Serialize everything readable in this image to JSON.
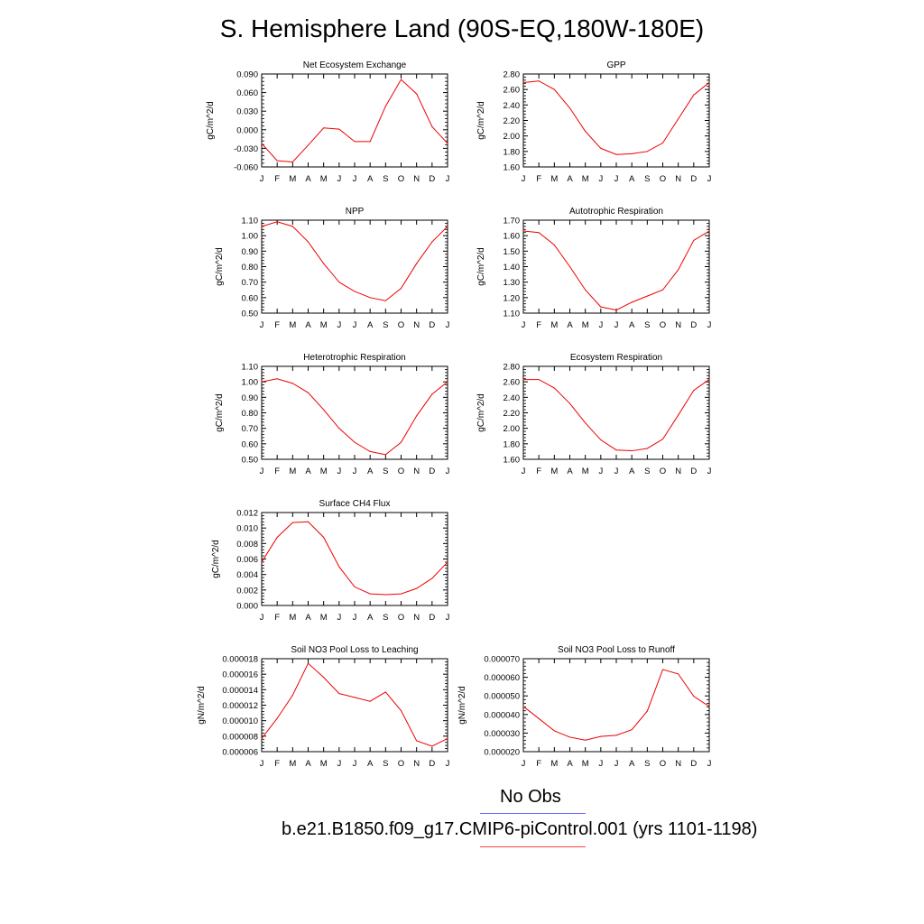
{
  "page": {
    "title": "S. Hemisphere Land (90S-EQ,180W-180E)"
  },
  "legend": {
    "obs_label": "No Obs",
    "model_label": "b.e21.B1850.f09_g17.CMIP6-piControl.001 (yrs 1101-1198)",
    "obs_color": "#6b6bff",
    "model_color": "#ff4444"
  },
  "colors": {
    "series": "#ee0000",
    "axis": "#000000"
  },
  "chart_data": [
    {
      "type": "line",
      "title": "Net Ecosystem Exchange",
      "ylabel": "gC/m^2/d",
      "x_ticks": [
        "J",
        "F",
        "M",
        "A",
        "M",
        "J",
        "J",
        "A",
        "S",
        "O",
        "N",
        "D",
        "J"
      ],
      "ylim": [
        -0.06,
        0.09
      ],
      "y_ticks": [
        "-0.060",
        "-0.030",
        "0.000",
        "0.030",
        "0.060",
        "0.090"
      ],
      "series": [
        {
          "name": "model",
          "values": [
            -0.022,
            -0.05,
            -0.052,
            -0.025,
            0.003,
            0.001,
            -0.019,
            -0.019,
            0.038,
            0.081,
            0.058,
            0.005,
            -0.022
          ]
        }
      ]
    },
    {
      "type": "line",
      "title": "GPP",
      "ylabel": "gC/m^2/d",
      "x_ticks": [
        "J",
        "F",
        "M",
        "A",
        "M",
        "J",
        "J",
        "A",
        "S",
        "O",
        "N",
        "D",
        "J"
      ],
      "ylim": [
        1.6,
        2.8
      ],
      "y_ticks": [
        "1.60",
        "1.80",
        "2.00",
        "2.20",
        "2.40",
        "2.60",
        "2.80"
      ],
      "series": [
        {
          "name": "model",
          "values": [
            2.69,
            2.71,
            2.6,
            2.36,
            2.06,
            1.84,
            1.76,
            1.77,
            1.8,
            1.91,
            2.22,
            2.53,
            2.69
          ]
        }
      ]
    },
    {
      "type": "line",
      "title": "NPP",
      "ylabel": "gC/m^2/d",
      "x_ticks": [
        "J",
        "F",
        "M",
        "A",
        "M",
        "J",
        "J",
        "A",
        "S",
        "O",
        "N",
        "D",
        "J"
      ],
      "ylim": [
        0.5,
        1.1
      ],
      "y_ticks": [
        "0.50",
        "0.60",
        "0.70",
        "0.80",
        "0.90",
        "1.00",
        "1.10"
      ],
      "series": [
        {
          "name": "model",
          "values": [
            1.06,
            1.09,
            1.06,
            0.96,
            0.82,
            0.7,
            0.64,
            0.6,
            0.58,
            0.66,
            0.82,
            0.96,
            1.06
          ]
        }
      ]
    },
    {
      "type": "line",
      "title": "Autotrophic Respiration",
      "ylabel": "gC/m^2/d",
      "x_ticks": [
        "J",
        "F",
        "M",
        "A",
        "M",
        "J",
        "J",
        "A",
        "S",
        "O",
        "N",
        "D",
        "J"
      ],
      "ylim": [
        1.1,
        1.7
      ],
      "y_ticks": [
        "1.10",
        "1.20",
        "1.30",
        "1.40",
        "1.50",
        "1.60",
        "1.70"
      ],
      "series": [
        {
          "name": "model",
          "values": [
            1.63,
            1.62,
            1.54,
            1.4,
            1.25,
            1.14,
            1.12,
            1.17,
            1.21,
            1.25,
            1.38,
            1.57,
            1.63
          ]
        }
      ]
    },
    {
      "type": "line",
      "title": "Heterotrophic Respiration",
      "ylabel": "gC/m^2/d",
      "x_ticks": [
        "J",
        "F",
        "M",
        "A",
        "M",
        "J",
        "J",
        "A",
        "S",
        "O",
        "N",
        "D",
        "J"
      ],
      "ylim": [
        0.5,
        1.1
      ],
      "y_ticks": [
        "0.50",
        "0.60",
        "0.70",
        "0.80",
        "0.90",
        "1.00",
        "1.10"
      ],
      "series": [
        {
          "name": "model",
          "values": [
            1.0,
            1.02,
            0.99,
            0.93,
            0.82,
            0.7,
            0.61,
            0.55,
            0.53,
            0.61,
            0.78,
            0.92,
            1.0
          ]
        }
      ]
    },
    {
      "type": "line",
      "title": "Ecosystem Respiration",
      "ylabel": "gC/m^2/d",
      "x_ticks": [
        "J",
        "F",
        "M",
        "A",
        "M",
        "J",
        "J",
        "A",
        "S",
        "O",
        "N",
        "D",
        "J"
      ],
      "ylim": [
        1.6,
        2.8
      ],
      "y_ticks": [
        "1.60",
        "1.80",
        "2.00",
        "2.20",
        "2.40",
        "2.60",
        "2.80"
      ],
      "series": [
        {
          "name": "model",
          "values": [
            2.63,
            2.63,
            2.52,
            2.32,
            2.07,
            1.85,
            1.72,
            1.71,
            1.74,
            1.86,
            2.17,
            2.49,
            2.63
          ]
        }
      ]
    },
    {
      "type": "line",
      "title": "Surface CH4 Flux",
      "ylabel": "gC/m^2/d",
      "x_ticks": [
        "J",
        "F",
        "M",
        "A",
        "M",
        "J",
        "J",
        "A",
        "S",
        "O",
        "N",
        "D",
        "J"
      ],
      "ylim": [
        0.0,
        0.012
      ],
      "y_ticks": [
        "0.000",
        "0.002",
        "0.004",
        "0.006",
        "0.008",
        "0.010",
        "0.012"
      ],
      "series": [
        {
          "name": "model",
          "values": [
            0.0056,
            0.0088,
            0.0107,
            0.0108,
            0.0088,
            0.005,
            0.0024,
            0.0015,
            0.0014,
            0.0015,
            0.0022,
            0.0035,
            0.0056
          ]
        }
      ]
    },
    {
      "type": "line",
      "title": "Soil NO3 Pool Loss to Leaching",
      "ylabel": "gN/m^2/d",
      "x_ticks": [
        "J",
        "F",
        "M",
        "A",
        "M",
        "J",
        "J",
        "A",
        "S",
        "O",
        "N",
        "D",
        "J"
      ],
      "ylim": [
        6e-06,
        1.8e-05
      ],
      "y_ticks": [
        "0.000006",
        "0.000008",
        "0.000010",
        "0.000012",
        "0.000014",
        "0.000016",
        "0.000018"
      ],
      "series": [
        {
          "name": "model",
          "values": [
            7.7e-06,
            1.03e-05,
            1.33e-05,
            1.74e-05,
            1.56e-05,
            1.35e-05,
            1.3e-05,
            1.25e-05,
            1.37e-05,
            1.13e-05,
            7.4e-06,
            6.7e-06,
            7.7e-06
          ]
        }
      ]
    },
    {
      "type": "line",
      "title": "Soil NO3 Pool Loss to Runoff",
      "ylabel": "gN/m^2/d",
      "x_ticks": [
        "J",
        "F",
        "M",
        "A",
        "M",
        "J",
        "J",
        "A",
        "S",
        "O",
        "N",
        "D",
        "J"
      ],
      "ylim": [
        2e-05,
        7e-05
      ],
      "y_ticks": [
        "0.000020",
        "0.000030",
        "0.000040",
        "0.000050",
        "0.000060",
        "0.000070"
      ],
      "series": [
        {
          "name": "model",
          "values": [
            4.43e-05,
            3.78e-05,
            3.12e-05,
            2.78e-05,
            2.62e-05,
            2.82e-05,
            2.88e-05,
            3.18e-05,
            4.18e-05,
            6.42e-05,
            6.18e-05,
            4.98e-05,
            4.43e-05
          ]
        }
      ]
    }
  ]
}
